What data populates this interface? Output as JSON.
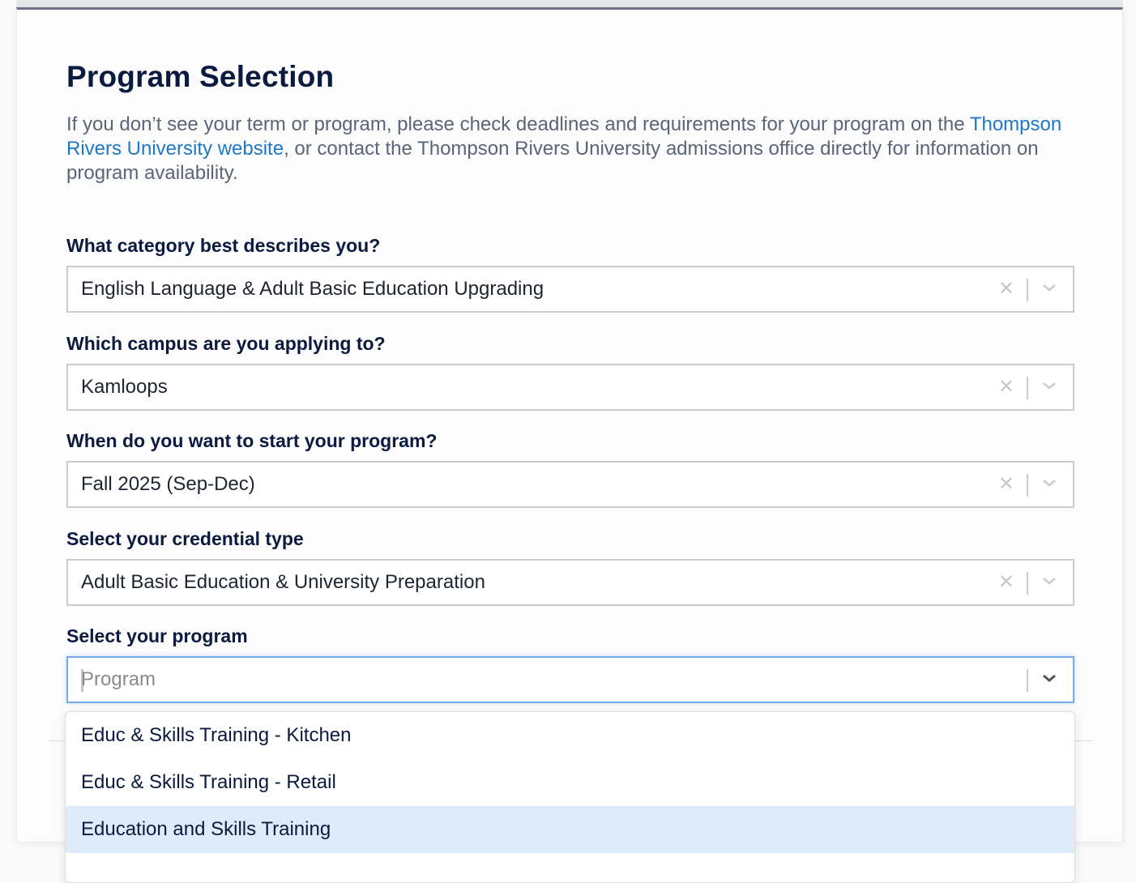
{
  "page": {
    "title": "Program Selection",
    "intro_before": "If you don’t see your term or program, please check deadlines and requirements for your program on the ",
    "intro_link": "Thompson Rivers University website",
    "intro_after": ", or contact the Thompson Rivers University admissions office directly for information on program availability."
  },
  "fields": [
    {
      "label": "What category best describes you?",
      "value": "English Language & Adult Basic Education Upgrading"
    },
    {
      "label": "Which campus are you applying to?",
      "value": "Kamloops"
    },
    {
      "label": "When do you want to start your program?",
      "value": "Fall 2025 (Sep-Dec)"
    },
    {
      "label": "Select your credential type",
      "value": "Adult Basic Education & University Preparation"
    },
    {
      "label": "Select your program",
      "value": "",
      "placeholder": "Program"
    }
  ],
  "dropdown": {
    "options": [
      "Educ & Skills Training - Kitchen",
      "Educ & Skills Training - Retail",
      "Education and Skills Training"
    ],
    "highlighted_index": 2
  },
  "colors": {
    "heading": "#0b1a3f",
    "link": "#1e78c8",
    "focus": "#74aae6",
    "highlight": "#deebfb"
  }
}
